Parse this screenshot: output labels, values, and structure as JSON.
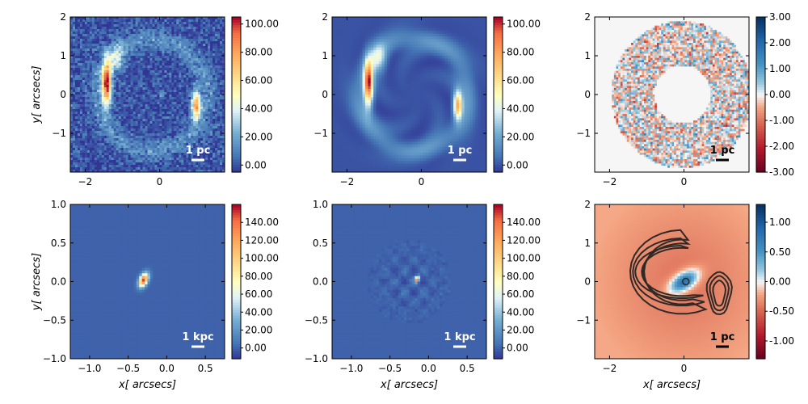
{
  "figure": {
    "description_units": "arcsecs"
  },
  "chart_data": [
    {
      "type": "heatmap",
      "panel": "data-image",
      "xlabel": "",
      "ylabel": "y[ arcsecs]",
      "xlim": [
        -2.4,
        1.75
      ],
      "ylim": [
        -2.0,
        2.0
      ],
      "xticks": [
        {
          "v": -2,
          "label": "−2"
        },
        {
          "v": 0,
          "label": "0"
        }
      ],
      "yticks": [
        {
          "v": -1,
          "label": "−1"
        },
        {
          "v": 0,
          "label": "0"
        },
        {
          "v": 1,
          "label": "1"
        },
        {
          "v": 2,
          "label": "2"
        }
      ],
      "colormap": "RdYlBu_r",
      "clim": [
        -5,
        105
      ],
      "colorbar_ticks": [
        {
          "v": 0,
          "label": "0.00"
        },
        {
          "v": 20,
          "label": "20.00"
        },
        {
          "v": 40,
          "label": "40.00"
        },
        {
          "v": 60,
          "label": "60.00"
        },
        {
          "v": 80,
          "label": "80.00"
        },
        {
          "v": 100,
          "label": "100.00"
        }
      ],
      "scalebar_label": "1 pc",
      "scalebar_color": "#ffffff",
      "content": "noisy Einstein ring with two bright arcs",
      "ring_radius": 1.55,
      "arcs": [
        {
          "x": -1.45,
          "y": 0.3,
          "peak": 100
        },
        {
          "x": 0.95,
          "y": -0.3,
          "peak": 75
        }
      ]
    },
    {
      "type": "heatmap",
      "panel": "model-image",
      "xlabel": "",
      "ylabel": "",
      "xlim": [
        -2.4,
        1.75
      ],
      "ylim": [
        -2.0,
        2.0
      ],
      "xticks": [
        {
          "v": -2,
          "label": "−2"
        },
        {
          "v": 0,
          "label": "0"
        }
      ],
      "yticks": [
        {
          "v": -1,
          "label": "−1"
        },
        {
          "v": 0,
          "label": "0"
        },
        {
          "v": 1,
          "label": "1"
        },
        {
          "v": 2,
          "label": "2"
        }
      ],
      "colormap": "RdYlBu_r",
      "clim": [
        -5,
        105
      ],
      "colorbar_ticks": [
        {
          "v": 0,
          "label": "0.00"
        },
        {
          "v": 20,
          "label": "20.00"
        },
        {
          "v": 40,
          "label": "40.00"
        },
        {
          "v": 60,
          "label": "60.00"
        },
        {
          "v": 80,
          "label": "80.00"
        },
        {
          "v": 100,
          "label": "100.00"
        }
      ],
      "scalebar_label": "1 pc",
      "scalebar_color": "#ffffff",
      "content": "smooth model Einstein ring with two bright arcs"
    },
    {
      "type": "heatmap",
      "panel": "normalized-residuals",
      "xlabel": "",
      "ylabel": "",
      "xlim": [
        -2.4,
        1.75
      ],
      "ylim": [
        -2.0,
        2.0
      ],
      "xticks": [
        {
          "v": -2,
          "label": "−2"
        },
        {
          "v": 0,
          "label": "0"
        }
      ],
      "yticks": [
        {
          "v": -1,
          "label": "−1"
        },
        {
          "v": 0,
          "label": "0"
        },
        {
          "v": 1,
          "label": "1"
        },
        {
          "v": 2,
          "label": "2"
        }
      ],
      "colormap": "RdBu",
      "clim": [
        -3,
        3
      ],
      "colorbar_ticks": [
        {
          "v": -3,
          "label": "-3.00"
        },
        {
          "v": -2,
          "label": "-2.00"
        },
        {
          "v": -1,
          "label": "-1.00"
        },
        {
          "v": 0,
          "label": "0.00"
        },
        {
          "v": 1,
          "label": "1.00"
        },
        {
          "v": 2,
          "label": "2.00"
        },
        {
          "v": 3,
          "label": "3.00"
        }
      ],
      "scalebar_label": "1 pc",
      "scalebar_color": "#000000",
      "content": "annular mask of random residuals",
      "annulus_inner": 0.75,
      "annulus_outer": 1.9
    },
    {
      "type": "heatmap",
      "panel": "source-truth",
      "xlabel": "x[ arcsecs]",
      "ylabel": "y[ arcsecs]",
      "xlim": [
        -1.25,
        0.75
      ],
      "ylim": [
        -1.0,
        1.0
      ],
      "xticks": [
        {
          "v": -1.0,
          "label": "−1.0"
        },
        {
          "v": -0.5,
          "label": "−0.5"
        },
        {
          "v": 0.0,
          "label": "0.0"
        },
        {
          "v": 0.5,
          "label": "0.5"
        }
      ],
      "yticks": [
        {
          "v": -1.0,
          "label": "−1.0"
        },
        {
          "v": -0.5,
          "label": "−0.5"
        },
        {
          "v": 0.0,
          "label": "0.0"
        },
        {
          "v": 0.5,
          "label": "0.5"
        },
        {
          "v": 1.0,
          "label": "1.0"
        }
      ],
      "colormap": "RdYlBu_r",
      "clim": [
        -12,
        160
      ],
      "colorbar_ticks": [
        {
          "v": 0,
          "label": "0.00"
        },
        {
          "v": 20,
          "label": "20.00"
        },
        {
          "v": 40,
          "label": "40.00"
        },
        {
          "v": 60,
          "label": "60.00"
        },
        {
          "v": 80,
          "label": "80.00"
        },
        {
          "v": 100,
          "label": "100.00"
        },
        {
          "v": 120,
          "label": "120.00"
        },
        {
          "v": 140,
          "label": "140.00"
        }
      ],
      "scalebar_label": "1 kpc",
      "scalebar_color": "#ffffff",
      "content": "compact elongated source",
      "source": {
        "x": -0.3,
        "y": 0.02,
        "peak": 150
      }
    },
    {
      "type": "heatmap",
      "panel": "source-reconstruction",
      "xlabel": "x[ arcsecs]",
      "ylabel": "",
      "xlim": [
        -1.25,
        0.75
      ],
      "ylim": [
        -1.0,
        1.0
      ],
      "xticks": [
        {
          "v": -1.0,
          "label": "−1.0"
        },
        {
          "v": -0.5,
          "label": "−0.5"
        },
        {
          "v": 0.0,
          "label": "0.0"
        },
        {
          "v": 0.5,
          "label": "0.5"
        }
      ],
      "yticks": [
        {
          "v": -1.0,
          "label": "−1.0"
        },
        {
          "v": -0.5,
          "label": "−0.5"
        },
        {
          "v": 0.0,
          "label": "0.0"
        },
        {
          "v": 0.5,
          "label": "0.5"
        },
        {
          "v": 1.0,
          "label": "1.0"
        }
      ],
      "colormap": "RdYlBu_r",
      "clim": [
        -12,
        160
      ],
      "colorbar_ticks": [
        {
          "v": 0,
          "label": "0.00"
        },
        {
          "v": 20,
          "label": "20.00"
        },
        {
          "v": 40,
          "label": "40.00"
        },
        {
          "v": 60,
          "label": "60.00"
        },
        {
          "v": 80,
          "label": "80.00"
        },
        {
          "v": 100,
          "label": "100.00"
        },
        {
          "v": 120,
          "label": "120.00"
        },
        {
          "v": 140,
          "label": "140.00"
        }
      ],
      "scalebar_label": "1 kpc",
      "scalebar_color": "#ffffff",
      "content": "reconstructed compact source with patchy background",
      "source": {
        "x": -0.15,
        "y": 0.03,
        "peak": 150
      }
    },
    {
      "type": "heatmap",
      "panel": "potential-correction",
      "xlabel": "x[ arcsecs]",
      "ylabel": "",
      "xlim": [
        -2.4,
        1.75
      ],
      "ylim": [
        -2.0,
        2.0
      ],
      "xticks": [
        {
          "v": -2,
          "label": "−2"
        },
        {
          "v": 0,
          "label": "0"
        }
      ],
      "yticks": [
        {
          "v": -1,
          "label": "−1"
        },
        {
          "v": 0,
          "label": "0"
        },
        {
          "v": 1,
          "label": "1"
        },
        {
          "v": 2,
          "label": "2"
        }
      ],
      "colormap": "RdBu",
      "clim": [
        -1.3,
        1.3
      ],
      "colorbar_ticks": [
        {
          "v": -1.0,
          "label": "-1.00"
        },
        {
          "v": -0.5,
          "label": "-0.50"
        },
        {
          "v": 0.0,
          "label": "0.00"
        },
        {
          "v": 0.5,
          "label": "0.50"
        },
        {
          "v": 1.0,
          "label": "1.00"
        }
      ],
      "scalebar_label": "1 pc",
      "scalebar_color": "#000000",
      "content": "blue elongated blob at center on salmon background with dark contours of two arcs"
    }
  ]
}
